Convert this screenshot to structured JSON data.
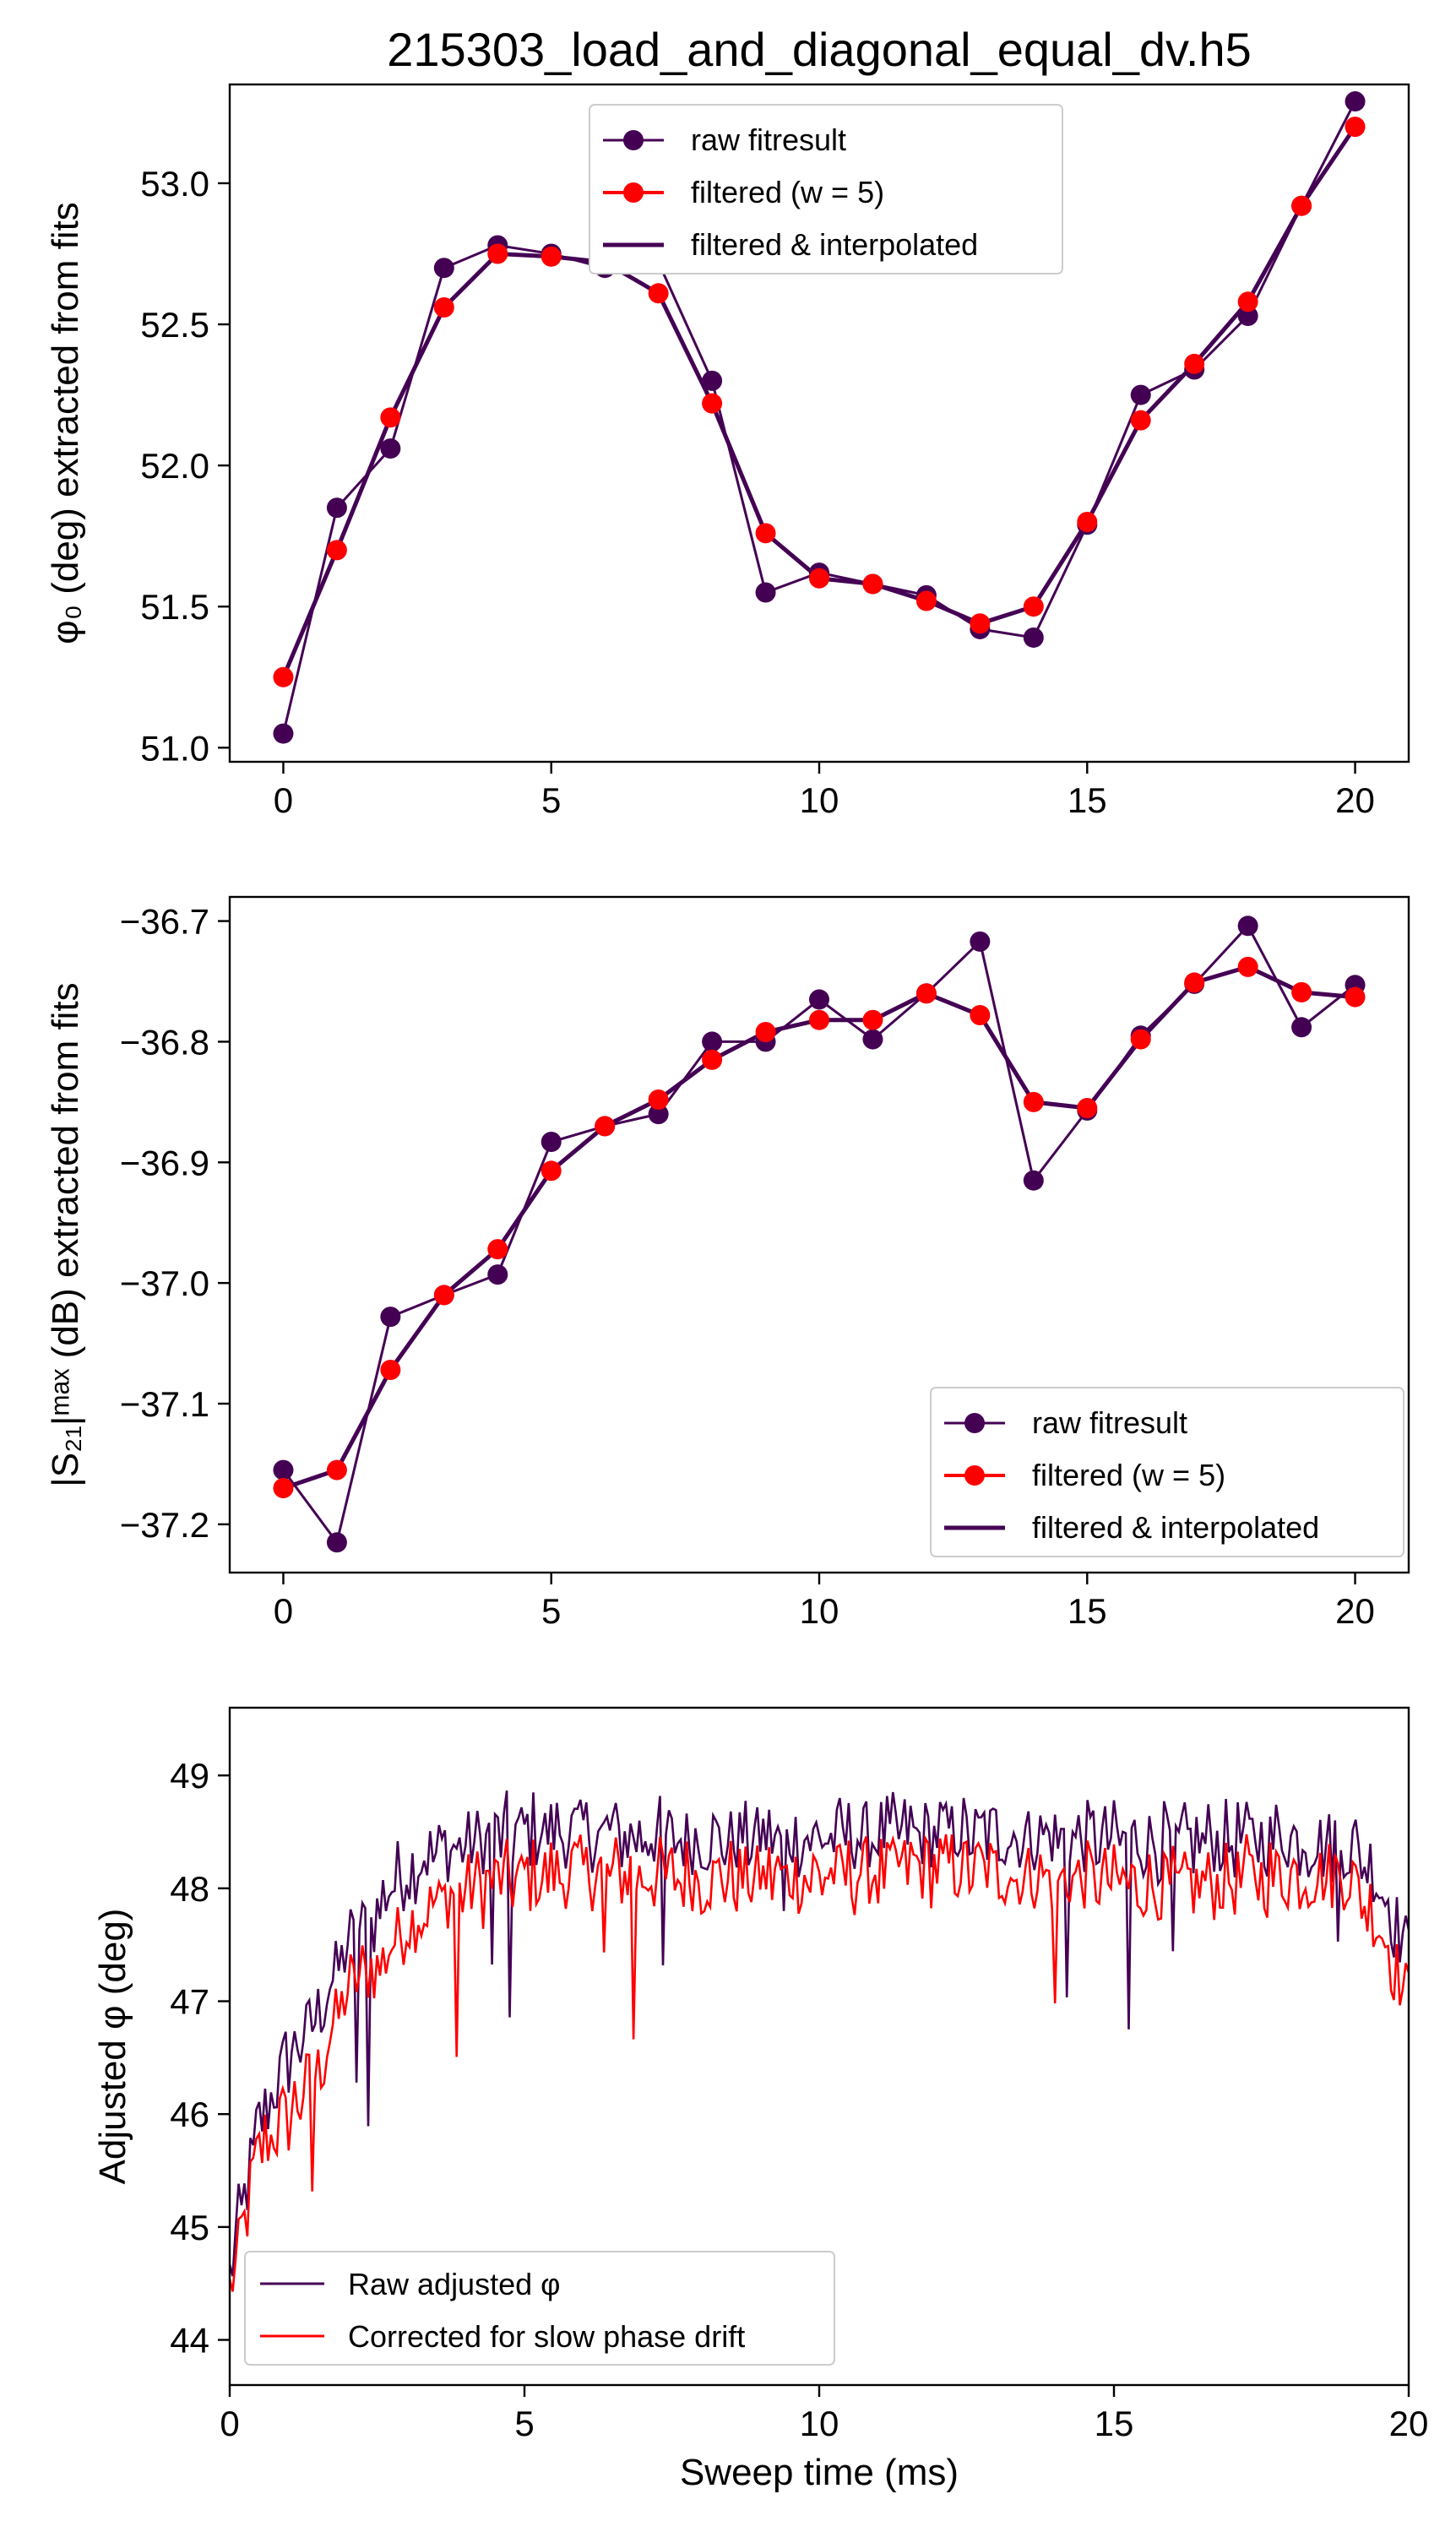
{
  "figure_title": "215303_load_and_diagonal_equal_dv.h5",
  "colors": {
    "raw": "#440154",
    "filtered": "#ff0000",
    "interp": "#440154"
  },
  "chart_data": [
    {
      "type": "line",
      "title": "215303_load_and_diagonal_equal_dv.h5",
      "xlabel": "",
      "ylabel": "φ₀ (deg) extracted from fits",
      "xlim": [
        -1,
        21
      ],
      "ylim": [
        50.95,
        53.35
      ],
      "xticks": [
        0,
        5,
        10,
        15,
        20
      ],
      "xtick_labels": [
        "0",
        "5",
        "10",
        "15",
        "20"
      ],
      "yticks": [
        51.0,
        51.5,
        52.0,
        52.5,
        53.0
      ],
      "ytick_labels": [
        "51.0",
        "51.5",
        "52.0",
        "52.5",
        "53.0"
      ],
      "legend_loc": "upper center",
      "legend": [
        "raw fitresult",
        "filtered (w = 5)",
        "filtered & interpolated"
      ],
      "x": [
        0,
        1,
        2,
        3,
        4,
        5,
        6,
        7,
        8,
        9,
        10,
        11,
        12,
        13,
        14,
        15,
        16,
        17,
        18,
        19,
        20
      ],
      "series": [
        {
          "name": "raw fitresult",
          "style": "marker-line",
          "color": "#440154",
          "values": [
            51.05,
            51.85,
            52.06,
            52.7,
            52.78,
            52.75,
            52.7,
            52.72,
            52.3,
            51.55,
            51.62,
            51.58,
            51.54,
            51.42,
            51.39,
            51.79,
            52.25,
            52.34,
            52.53,
            52.92,
            53.29
          ]
        },
        {
          "name": "filtered (w = 5)",
          "style": "marker",
          "color": "#ff0000",
          "values": [
            51.25,
            51.7,
            52.17,
            52.56,
            52.75,
            52.74,
            52.72,
            52.61,
            52.22,
            51.76,
            51.6,
            51.58,
            51.52,
            51.44,
            51.5,
            51.8,
            52.16,
            52.36,
            52.58,
            52.92,
            53.2
          ]
        },
        {
          "name": "filtered & interpolated",
          "style": "line",
          "color": "#440154",
          "values": [
            51.25,
            51.7,
            52.17,
            52.56,
            52.75,
            52.74,
            52.72,
            52.61,
            52.22,
            51.76,
            51.6,
            51.58,
            51.52,
            51.44,
            51.5,
            51.8,
            52.16,
            52.36,
            52.58,
            52.92,
            53.2
          ]
        }
      ]
    },
    {
      "type": "line",
      "title": "",
      "xlabel": "",
      "ylabel": "|S₂₁|ᵐᵃˣ (dB) extracted from fits",
      "xlim": [
        -1,
        21
      ],
      "ylim": [
        -37.24,
        -36.68
      ],
      "xticks": [
        0,
        5,
        10,
        15,
        20
      ],
      "xtick_labels": [
        "0",
        "5",
        "10",
        "15",
        "20"
      ],
      "yticks": [
        -37.2,
        -37.1,
        -37.0,
        -36.9,
        -36.8,
        -36.7
      ],
      "ytick_labels": [
        "−37.2",
        "−37.1",
        "−37.0",
        "−36.9",
        "−36.8",
        "−36.7"
      ],
      "legend_loc": "lower right",
      "legend": [
        "raw fitresult",
        "filtered (w = 5)",
        "filtered & interpolated"
      ],
      "x": [
        0,
        1,
        2,
        3,
        4,
        5,
        6,
        7,
        8,
        9,
        10,
        11,
        12,
        13,
        14,
        15,
        16,
        17,
        18,
        19,
        20
      ],
      "series": [
        {
          "name": "raw fitresult",
          "style": "marker-line",
          "color": "#440154",
          "values": [
            -37.155,
            -37.215,
            -37.028,
            -37.01,
            -36.993,
            -36.883,
            -36.87,
            -36.86,
            -36.8,
            -36.8,
            -36.765,
            -36.798,
            -36.76,
            -36.717,
            -36.915,
            -36.857,
            -36.795,
            -36.752,
            -36.704,
            -36.788,
            -36.753
          ]
        },
        {
          "name": "filtered (w = 5)",
          "style": "marker",
          "color": "#ff0000",
          "values": [
            -37.17,
            -37.155,
            -37.072,
            -37.01,
            -36.972,
            -36.907,
            -36.87,
            -36.848,
            -36.815,
            -36.792,
            -36.782,
            -36.782,
            -36.76,
            -36.778,
            -36.85,
            -36.855,
            -36.798,
            -36.751,
            -36.738,
            -36.759,
            -36.763
          ]
        },
        {
          "name": "filtered & interpolated",
          "style": "line",
          "color": "#440154",
          "values": [
            -37.17,
            -37.155,
            -37.072,
            -37.01,
            -36.972,
            -36.907,
            -36.87,
            -36.848,
            -36.815,
            -36.792,
            -36.782,
            -36.782,
            -36.76,
            -36.778,
            -36.85,
            -36.855,
            -36.798,
            -36.751,
            -36.738,
            -36.759,
            -36.763
          ]
        }
      ]
    },
    {
      "type": "line",
      "title": "",
      "xlabel": "Sweep time (ms)",
      "ylabel": "Adjusted φ (deg)",
      "xlim": [
        0,
        20
      ],
      "ylim": [
        43.6,
        49.6
      ],
      "xticks": [
        0,
        5,
        10,
        15,
        20
      ],
      "xtick_labels": [
        "0",
        "5",
        "10",
        "15",
        "20"
      ],
      "yticks": [
        44,
        45,
        46,
        47,
        48,
        49
      ],
      "ytick_labels": [
        "44",
        "45",
        "46",
        "47",
        "48",
        "49"
      ],
      "legend_loc": "lower left",
      "legend": [
        "Raw adjusted φ",
        "Corrected for slow phase drift"
      ],
      "noisy": true,
      "samples": 400,
      "series": [
        {
          "name": "Raw adjusted φ",
          "color": "#440154",
          "envelope_x": [
            0,
            0.5,
            1,
            1.5,
            2,
            2.5,
            3,
            4,
            5,
            6,
            8,
            10,
            12,
            14,
            16,
            18,
            19,
            19.5,
            20
          ],
          "envelope_y": [
            44.6,
            45.9,
            46.5,
            46.9,
            47.5,
            47.8,
            48.2,
            48.4,
            48.5,
            48.5,
            48.45,
            48.45,
            48.5,
            48.45,
            48.4,
            48.45,
            48.4,
            48.1,
            47.4
          ],
          "noise": 0.34
        },
        {
          "name": "Corrected for slow phase drift",
          "color": "#ff0000",
          "envelope_x": [
            0,
            0.5,
            1,
            1.5,
            2,
            2.5,
            3,
            4,
            5,
            6,
            8,
            10,
            12,
            14,
            16,
            18,
            19,
            19.5,
            20
          ],
          "envelope_y": [
            44.4,
            45.7,
            46.0,
            46.4,
            47.1,
            47.3,
            47.7,
            48.0,
            48.1,
            48.15,
            48.1,
            48.1,
            48.2,
            48.1,
            48.0,
            48.15,
            48.1,
            47.7,
            47.0
          ],
          "noise": 0.34
        }
      ]
    }
  ]
}
